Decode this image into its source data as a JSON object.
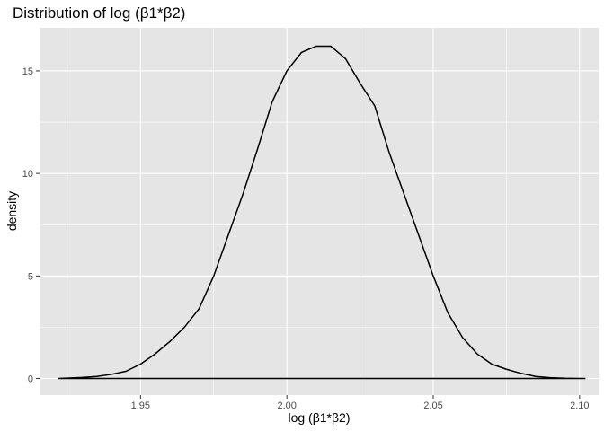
{
  "chart_data": {
    "type": "area",
    "title": "Distribution of log (β1*β2)",
    "xlabel": "log (β1*β2)",
    "ylabel": "density",
    "xlim": [
      1.9155,
      2.1065
    ],
    "ylim": [
      -0.81,
      17.1
    ],
    "x_ticks": [
      1.95,
      2.0,
      2.05,
      2.1
    ],
    "x_tick_labels": [
      "1.95",
      "2.00",
      "2.05",
      "2.10"
    ],
    "y_ticks": [
      0,
      5,
      10,
      15
    ],
    "y_tick_labels": [
      "0",
      "5",
      "10",
      "15"
    ],
    "grid": true,
    "panel_background": "#e5e5e5",
    "grid_color": "#ffffff",
    "line_color": "#000000",
    "series": [
      {
        "x": [
          1.922,
          1.93,
          1.935,
          1.94,
          1.945,
          1.95,
          1.955,
          1.96,
          1.965,
          1.97,
          1.975,
          1.98,
          1.985,
          1.99,
          1.995,
          2.0,
          2.005,
          2.01,
          2.015,
          2.02,
          2.025,
          2.03,
          2.035,
          2.04,
          2.045,
          2.05,
          2.055,
          2.06,
          2.065,
          2.07,
          2.075,
          2.08,
          2.085,
          2.09,
          2.095,
          2.1,
          2.102
        ],
        "y": [
          0.0,
          0.05,
          0.1,
          0.2,
          0.35,
          0.7,
          1.2,
          1.8,
          2.5,
          3.4,
          5.0,
          7.0,
          9.0,
          11.2,
          13.5,
          15.0,
          15.9,
          16.2,
          16.2,
          15.6,
          14.4,
          13.3,
          11.0,
          9.0,
          7.0,
          5.0,
          3.2,
          2.0,
          1.2,
          0.7,
          0.45,
          0.25,
          0.1,
          0.04,
          0.01,
          0.0,
          0.0
        ]
      }
    ]
  }
}
